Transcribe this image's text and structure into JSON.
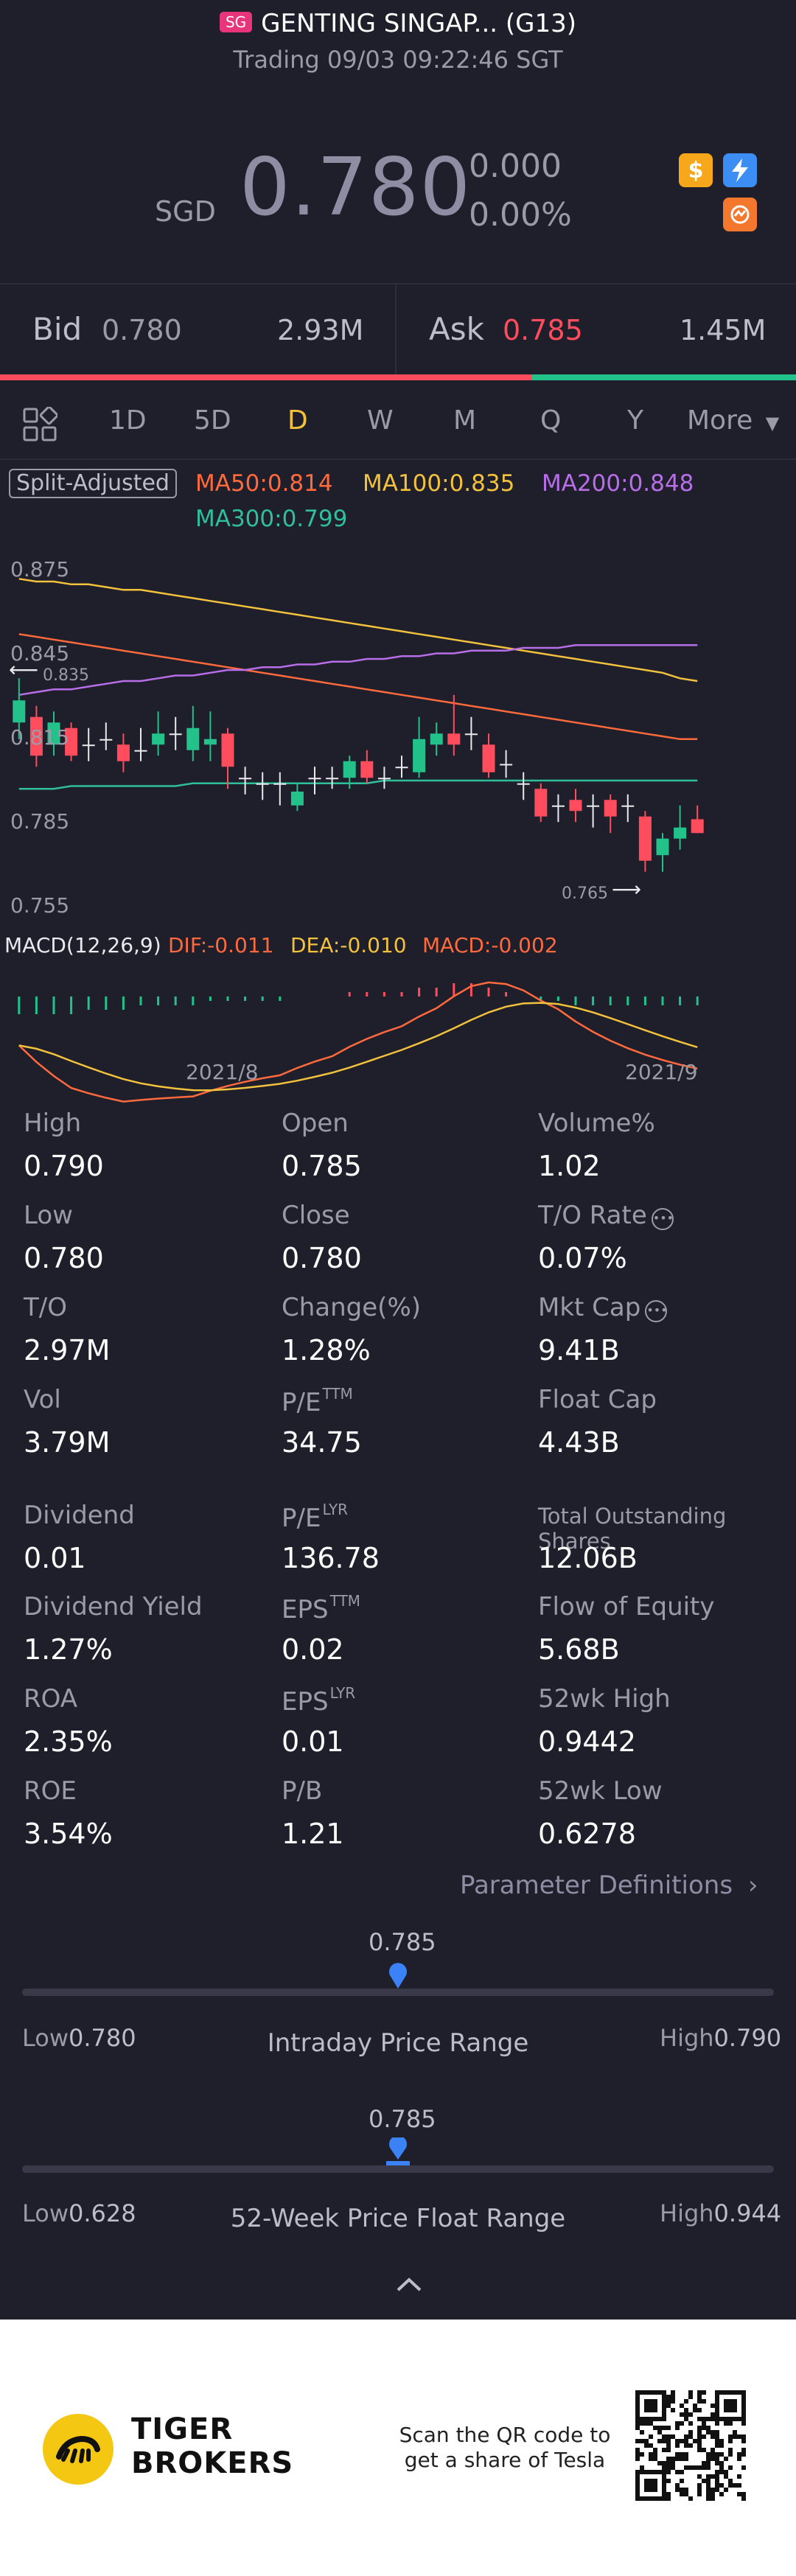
{
  "header": {
    "badge": "SG",
    "title": "GENTING SINGAP... (G13)",
    "trading_status": "Trading 09/03 09:22:46 SGT",
    "currency": "SGD",
    "price": "0.780",
    "change": "0.000",
    "change_pct": "0.00%",
    "icons": [
      "dollar-icon",
      "lightning-icon",
      "stock-connect-icon"
    ]
  },
  "quote": {
    "bid_label": "Bid",
    "bid_price": "0.780",
    "bid_volume": "2.93M",
    "ask_label": "Ask",
    "ask_price": "0.785",
    "ask_volume": "1.45M",
    "bid_color": "#ff4d5e",
    "ask_color": "#23c28b"
  },
  "tabs": {
    "items": [
      "1D",
      "5D",
      "D",
      "W",
      "M",
      "Q",
      "Y"
    ],
    "active": "D",
    "more": "More"
  },
  "chart": {
    "split_label": "Split-Adjusted",
    "ma50": "MA50:0.814",
    "ma100": "MA100:0.835",
    "ma200": "MA200:0.848",
    "ma300": "MA300:0.799",
    "y_ticks": [
      "0.875",
      "0.845",
      "0.815",
      "0.785",
      "0.755"
    ],
    "high_mark": "0.835",
    "low_mark": "0.765",
    "macd_title": "MACD(12,26,9)",
    "dif": "DIF:-0.011",
    "dea": "DEA:-0.010",
    "macd": "MACD:-0.002",
    "x_labels": [
      "2021/8",
      "2021/9"
    ],
    "colors": {
      "ma50": "#ff6a3d",
      "ma100": "#f3c23c",
      "ma200": "#b86ee8",
      "ma300": "#2fbf9a",
      "up": "#23c28b",
      "down": "#ff4d5e"
    }
  },
  "chart_data": {
    "type": "candlestick",
    "y_range": [
      0.755,
      0.875
    ],
    "candles": [
      {
        "o": 0.82,
        "c": 0.828,
        "h": 0.836,
        "l": 0.814
      },
      {
        "o": 0.822,
        "c": 0.808,
        "h": 0.826,
        "l": 0.804
      },
      {
        "o": 0.812,
        "c": 0.82,
        "h": 0.824,
        "l": 0.808
      },
      {
        "o": 0.818,
        "c": 0.808,
        "h": 0.82,
        "l": 0.806
      },
      {
        "o": 0.812,
        "c": 0.812,
        "h": 0.818,
        "l": 0.806
      },
      {
        "o": 0.814,
        "c": 0.814,
        "h": 0.82,
        "l": 0.81
      },
      {
        "o": 0.812,
        "c": 0.806,
        "h": 0.816,
        "l": 0.802
      },
      {
        "o": 0.81,
        "c": 0.81,
        "h": 0.818,
        "l": 0.806
      },
      {
        "o": 0.812,
        "c": 0.816,
        "h": 0.824,
        "l": 0.808
      },
      {
        "o": 0.816,
        "c": 0.816,
        "h": 0.822,
        "l": 0.81
      },
      {
        "o": 0.81,
        "c": 0.818,
        "h": 0.826,
        "l": 0.806
      },
      {
        "o": 0.812,
        "c": 0.814,
        "h": 0.824,
        "l": 0.806
      },
      {
        "o": 0.816,
        "c": 0.804,
        "h": 0.818,
        "l": 0.796
      },
      {
        "o": 0.8,
        "c": 0.8,
        "h": 0.804,
        "l": 0.794
      },
      {
        "o": 0.798,
        "c": 0.798,
        "h": 0.802,
        "l": 0.792
      },
      {
        "o": 0.798,
        "c": 0.798,
        "h": 0.802,
        "l": 0.79
      },
      {
        "o": 0.79,
        "c": 0.795,
        "h": 0.798,
        "l": 0.788
      },
      {
        "o": 0.8,
        "c": 0.8,
        "h": 0.804,
        "l": 0.794
      },
      {
        "o": 0.8,
        "c": 0.8,
        "h": 0.804,
        "l": 0.796
      },
      {
        "o": 0.8,
        "c": 0.806,
        "h": 0.808,
        "l": 0.796
      },
      {
        "o": 0.806,
        "c": 0.8,
        "h": 0.81,
        "l": 0.798
      },
      {
        "o": 0.8,
        "c": 0.8,
        "h": 0.804,
        "l": 0.796
      },
      {
        "o": 0.804,
        "c": 0.804,
        "h": 0.808,
        "l": 0.8
      },
      {
        "o": 0.802,
        "c": 0.814,
        "h": 0.822,
        "l": 0.8
      },
      {
        "o": 0.812,
        "c": 0.816,
        "h": 0.82,
        "l": 0.808
      },
      {
        "o": 0.816,
        "c": 0.812,
        "h": 0.83,
        "l": 0.808
      },
      {
        "o": 0.816,
        "c": 0.816,
        "h": 0.822,
        "l": 0.81
      },
      {
        "o": 0.812,
        "c": 0.802,
        "h": 0.816,
        "l": 0.8
      },
      {
        "o": 0.805,
        "c": 0.805,
        "h": 0.81,
        "l": 0.8
      },
      {
        "o": 0.798,
        "c": 0.798,
        "h": 0.802,
        "l": 0.792
      },
      {
        "o": 0.796,
        "c": 0.786,
        "h": 0.798,
        "l": 0.784
      },
      {
        "o": 0.79,
        "c": 0.79,
        "h": 0.794,
        "l": 0.784
      },
      {
        "o": 0.792,
        "c": 0.788,
        "h": 0.796,
        "l": 0.784
      },
      {
        "o": 0.79,
        "c": 0.79,
        "h": 0.794,
        "l": 0.782
      },
      {
        "o": 0.792,
        "c": 0.786,
        "h": 0.794,
        "l": 0.78
      },
      {
        "o": 0.79,
        "c": 0.79,
        "h": 0.794,
        "l": 0.784
      },
      {
        "o": 0.786,
        "c": 0.77,
        "h": 0.788,
        "l": 0.766
      },
      {
        "o": 0.772,
        "c": 0.778,
        "h": 0.78,
        "l": 0.766
      },
      {
        "o": 0.778,
        "c": 0.782,
        "h": 0.79,
        "l": 0.774
      },
      {
        "o": 0.785,
        "c": 0.78,
        "h": 0.79,
        "l": 0.78
      }
    ],
    "ma_series": {
      "ma50": [
        0.852,
        0.851,
        0.85,
        0.849,
        0.848,
        0.847,
        0.846,
        0.845,
        0.844,
        0.843,
        0.842,
        0.841,
        0.84,
        0.839,
        0.838,
        0.837,
        0.836,
        0.835,
        0.834,
        0.833,
        0.832,
        0.831,
        0.83,
        0.829,
        0.828,
        0.827,
        0.826,
        0.825,
        0.824,
        0.823,
        0.822,
        0.821,
        0.82,
        0.819,
        0.818,
        0.817,
        0.816,
        0.815,
        0.814,
        0.814
      ],
      "ma100": [
        0.872,
        0.871,
        0.871,
        0.87,
        0.87,
        0.869,
        0.868,
        0.868,
        0.867,
        0.866,
        0.865,
        0.864,
        0.863,
        0.862,
        0.861,
        0.86,
        0.859,
        0.858,
        0.857,
        0.856,
        0.855,
        0.854,
        0.853,
        0.852,
        0.851,
        0.85,
        0.849,
        0.848,
        0.847,
        0.846,
        0.845,
        0.844,
        0.843,
        0.842,
        0.841,
        0.84,
        0.839,
        0.838,
        0.836,
        0.835
      ],
      "ma200": [
        0.83,
        0.831,
        0.832,
        0.832,
        0.833,
        0.834,
        0.835,
        0.835,
        0.836,
        0.837,
        0.837,
        0.838,
        0.839,
        0.839,
        0.84,
        0.84,
        0.841,
        0.841,
        0.842,
        0.842,
        0.843,
        0.843,
        0.844,
        0.844,
        0.845,
        0.845,
        0.846,
        0.846,
        0.846,
        0.847,
        0.847,
        0.847,
        0.848,
        0.848,
        0.848,
        0.848,
        0.848,
        0.848,
        0.848,
        0.848
      ],
      "ma300": [
        0.796,
        0.796,
        0.796,
        0.797,
        0.797,
        0.797,
        0.797,
        0.797,
        0.797,
        0.797,
        0.798,
        0.798,
        0.798,
        0.798,
        0.798,
        0.798,
        0.798,
        0.798,
        0.798,
        0.798,
        0.798,
        0.799,
        0.799,
        0.799,
        0.799,
        0.799,
        0.799,
        0.799,
        0.799,
        0.799,
        0.799,
        0.799,
        0.799,
        0.799,
        0.799,
        0.799,
        0.799,
        0.799,
        0.799,
        0.799
      ]
    },
    "macd_hist": [
      -0.004,
      -0.004,
      -0.004,
      -0.004,
      -0.003,
      -0.003,
      -0.003,
      -0.002,
      -0.002,
      -0.002,
      -0.002,
      -0.001,
      -0.001,
      -0.001,
      -0.001,
      -0.001,
      0.0,
      0.0,
      0.0,
      0.001,
      0.001,
      0.001,
      0.001,
      0.002,
      0.002,
      0.003,
      0.003,
      0.002,
      0.001,
      0.0,
      -0.001,
      -0.001,
      -0.002,
      -0.002,
      -0.002,
      -0.002,
      -0.002,
      -0.002,
      -0.002,
      -0.002
    ]
  },
  "stats": {
    "col1": [
      {
        "label": "High",
        "value": "0.790"
      },
      {
        "label": "Low",
        "value": "0.780"
      },
      {
        "label": "T/O",
        "value": "2.97M"
      },
      {
        "label": "Vol",
        "value": "3.79M"
      },
      {
        "label": "Dividend",
        "value": "0.01"
      },
      {
        "label": "Dividend Yield",
        "value": "1.27%"
      },
      {
        "label": "ROA",
        "value": "2.35%"
      },
      {
        "label": "ROE",
        "value": "3.54%"
      }
    ],
    "col2": [
      {
        "label": "Open",
        "value": "0.785"
      },
      {
        "label": "Close",
        "value": "0.780"
      },
      {
        "label": "Change(%)",
        "value": "1.28%"
      },
      {
        "label": "P/E",
        "sup": "TTM",
        "value": "34.75"
      },
      {
        "label": "P/E",
        "sup": "LYR",
        "value": "136.78"
      },
      {
        "label": "EPS",
        "sup": "TTM",
        "value": "0.02"
      },
      {
        "label": "EPS",
        "sup": "LYR",
        "value": "0.01"
      },
      {
        "label": "P/B",
        "value": "1.21"
      }
    ],
    "col3": [
      {
        "label": "Volume%",
        "value": "1.02"
      },
      {
        "label": "T/O Rate",
        "value": "0.07%"
      },
      {
        "label": "Mkt Cap",
        "value": "9.41B"
      },
      {
        "label": "Float Cap",
        "value": "4.43B"
      },
      {
        "label": "Total Outstanding Shares",
        "value": "12.06B"
      },
      {
        "label": "Flow of Equity",
        "value": "5.68B"
      },
      {
        "label": "52wk High",
        "value": "0.9442"
      },
      {
        "label": "52wk Low",
        "value": "0.6278"
      }
    ],
    "param_link": "Parameter Definitions"
  },
  "ranges": {
    "intraday": {
      "title": "Intraday Price Range",
      "current": "0.785",
      "low_label": "Low",
      "low": "0.780",
      "high_label": "High",
      "high": "0.790",
      "position": 0.5
    },
    "week52": {
      "title": "52-Week Price Float Range",
      "current": "0.785",
      "low_label": "Low",
      "low": "0.628",
      "high_label": "High",
      "high": "0.944",
      "position": 0.5
    }
  },
  "footer": {
    "brand_line1": "TIGER",
    "brand_line2": "BROKERS",
    "scan_text": "Scan the QR code to get a share of Tesla"
  }
}
